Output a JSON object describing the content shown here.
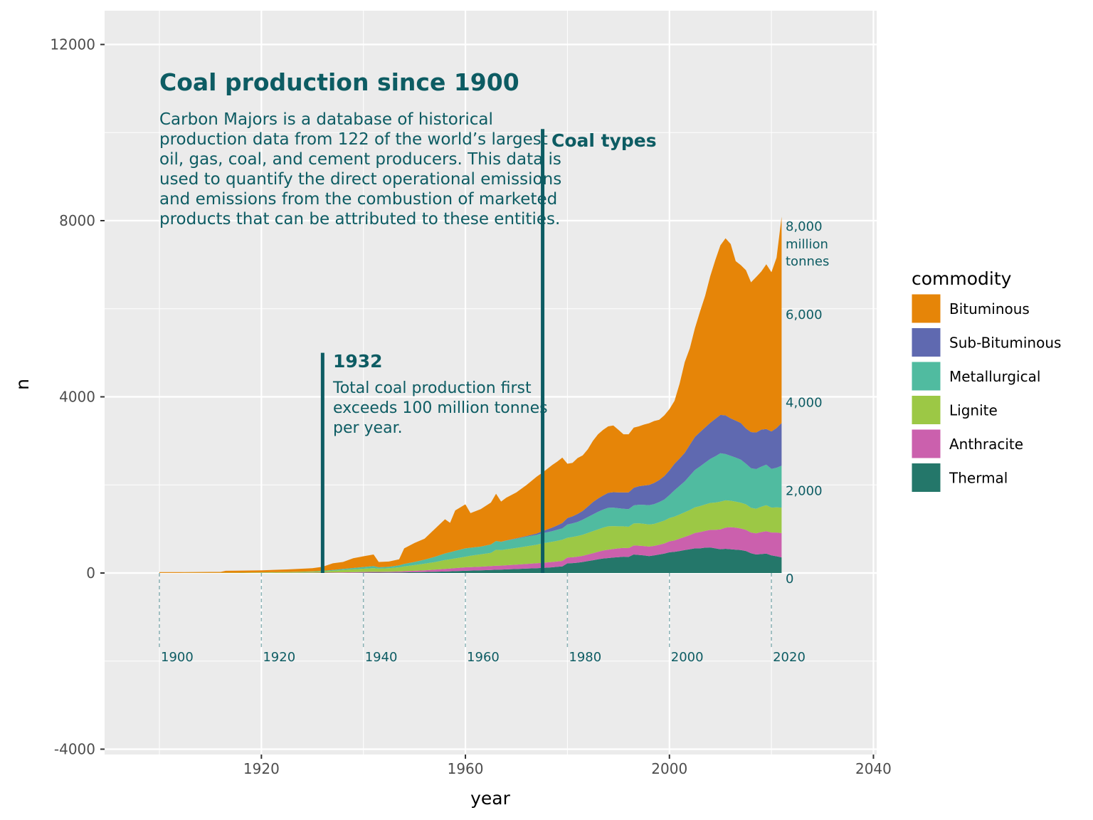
{
  "chart_data": {
    "type": "area",
    "stacked": true,
    "title": "Coal production since 1900",
    "subtitle": "Carbon Majors is a database of historical production data from 122 of the world’s largest oil, gas, coal, and cement producers. This data is used to quantify the direct operational emissions and emissions from the combustion of marketed products that can be attributed to these entities.",
    "subtitle_lines": [
      "Carbon Majors is a database of historical",
      "production data from 122 of the world’s largest",
      "oil, gas, coal, and cement producers. This data is",
      "used to quantify the direct operational emissions",
      "and emissions from the combustion of marketed",
      "products that can be attributed to these entities."
    ],
    "xlabel": "year",
    "ylabel": "n",
    "xlim": [
      1887,
      2041
    ],
    "ylim": [
      -4300,
      12800
    ],
    "x_ticks": [
      1920,
      1960,
      2000,
      2040
    ],
    "x_minor_ticks": [
      1900,
      1940,
      1980,
      2020
    ],
    "y_ticks": [
      -4000,
      0,
      4000,
      8000,
      12000
    ],
    "y_minor_ticks": [
      -2000,
      2000,
      6000,
      10000
    ],
    "grid": true,
    "legend": {
      "title": "commodity",
      "position": "right",
      "entries": [
        {
          "label": "Bituminous",
          "color": "#E68508"
        },
        {
          "label": "Sub-Bituminous",
          "color": "#5F69B0"
        },
        {
          "label": "Metallurgical",
          "color": "#50BBA0"
        },
        {
          "label": "Lignite",
          "color": "#9CC845"
        },
        {
          "label": "Anthracite",
          "color": "#CB60AD"
        },
        {
          "label": "Thermal",
          "color": "#24776A"
        }
      ]
    },
    "stack_order_bottom_to_top": [
      "Thermal",
      "Anthracite",
      "Lignite",
      "Metallurgical",
      "Sub-Bituminous",
      "Bituminous"
    ],
    "years": [
      1900,
      1905,
      1910,
      1912,
      1913,
      1915,
      1920,
      1925,
      1930,
      1932,
      1934,
      1936,
      1938,
      1940,
      1942,
      1943,
      1945,
      1947,
      1948,
      1950,
      1952,
      1954,
      1956,
      1957,
      1958,
      1960,
      1961,
      1963,
      1965,
      1966,
      1967,
      1968,
      1970,
      1972,
      1974,
      1975,
      1977,
      1978,
      1979,
      1980,
      1981,
      1982,
      1983,
      1984,
      1985,
      1986,
      1987,
      1988,
      1989,
      1990,
      1991,
      1992,
      1993,
      1994,
      1995,
      1996,
      1997,
      1998,
      1999,
      2000,
      2001,
      2002,
      2003,
      2004,
      2005,
      2006,
      2007,
      2008,
      2009,
      2010,
      2011,
      2012,
      2013,
      2014,
      2015,
      2016,
      2017,
      2018,
      2019,
      2020,
      2021,
      2022
    ],
    "series": [
      {
        "name": "Thermal",
        "values": [
          0,
          0,
          0,
          0,
          0,
          0,
          0,
          0,
          0,
          0,
          0,
          2,
          4,
          6,
          8,
          8,
          10,
          12,
          14,
          18,
          22,
          28,
          34,
          38,
          42,
          50,
          55,
          62,
          70,
          75,
          78,
          82,
          90,
          100,
          110,
          115,
          130,
          140,
          150,
          220,
          225,
          235,
          250,
          270,
          290,
          310,
          330,
          340,
          350,
          360,
          370,
          365,
          420,
          410,
          400,
          385,
          400,
          420,
          440,
          470,
          480,
          500,
          520,
          540,
          560,
          560,
          575,
          580,
          560,
          540,
          550,
          540,
          530,
          520,
          500,
          450,
          420,
          430,
          440,
          400,
          380,
          355
        ]
      },
      {
        "name": "Anthracite",
        "values": [
          0,
          0,
          0,
          0,
          0,
          0,
          2,
          4,
          6,
          8,
          10,
          12,
          14,
          16,
          18,
          16,
          18,
          22,
          26,
          32,
          40,
          50,
          60,
          64,
          70,
          80,
          78,
          82,
          88,
          92,
          90,
          94,
          100,
          106,
          112,
          115,
          120,
          122,
          124,
          130,
          132,
          136,
          140,
          150,
          160,
          170,
          180,
          190,
          195,
          200,
          200,
          200,
          205,
          210,
          212,
          215,
          215,
          220,
          230,
          250,
          260,
          280,
          300,
          320,
          350,
          370,
          380,
          400,
          420,
          450,
          480,
          500,
          500,
          490,
          480,
          470,
          480,
          500,
          510,
          520,
          540,
          550
        ]
      },
      {
        "name": "Lignite",
        "values": [
          2,
          3,
          4,
          4,
          6,
          7,
          10,
          15,
          22,
          28,
          40,
          55,
          65,
          75,
          85,
          75,
          80,
          95,
          110,
          130,
          150,
          170,
          200,
          210,
          220,
          240,
          260,
          280,
          300,
          360,
          350,
          360,
          380,
          400,
          420,
          440,
          460,
          470,
          480,
          450,
          460,
          470,
          480,
          490,
          500,
          510,
          520,
          530,
          520,
          500,
          490,
          485,
          500,
          510,
          505,
          500,
          500,
          510,
          520,
          530,
          540,
          550,
          560,
          570,
          580,
          590,
          600,
          610,
          620,
          630,
          620,
          600,
          590,
          585,
          580,
          560,
          560,
          575,
          590,
          565,
          570,
          580
        ]
      },
      {
        "name": "Metallurgical",
        "values": [
          0,
          0,
          0,
          0,
          0,
          0,
          2,
          4,
          8,
          12,
          18,
          25,
          30,
          38,
          45,
          30,
          35,
          45,
          55,
          70,
          90,
          120,
          150,
          160,
          170,
          190,
          180,
          175,
          190,
          200,
          190,
          200,
          210,
          220,
          225,
          230,
          240,
          250,
          260,
          300,
          310,
          320,
          340,
          360,
          380,
          400,
          410,
          420,
          420,
          410,
          400,
          400,
          410,
          420,
          430,
          440,
          450,
          460,
          480,
          520,
          600,
          650,
          700,
          780,
          850,
          900,
          950,
          1000,
          1050,
          1100,
          1050,
          1020,
          1000,
          980,
          920,
          900,
          900,
          910,
          920,
          880,
          900,
          950
        ]
      },
      {
        "name": "Sub-Bituminous",
        "values": [
          0,
          0,
          0,
          0,
          0,
          0,
          0,
          0,
          0,
          0,
          0,
          0,
          0,
          0,
          0,
          0,
          0,
          0,
          0,
          0,
          0,
          0,
          0,
          0,
          0,
          0,
          0,
          0,
          0,
          0,
          2,
          4,
          8,
          15,
          30,
          45,
          80,
          100,
          120,
          150,
          160,
          180,
          200,
          240,
          280,
          300,
          320,
          340,
          350,
          360,
          370,
          380,
          400,
          420,
          440,
          460,
          480,
          500,
          530,
          560,
          600,
          620,
          650,
          700,
          750,
          780,
          800,
          820,
          850,
          870,
          880,
          850,
          840,
          830,
          800,
          820,
          830,
          840,
          810,
          850,
          900,
          970
        ]
      },
      {
        "name": "Bituminous",
        "values": [
          18,
          18,
          20,
          20,
          44,
          44,
          48,
          58,
          74,
          92,
          152,
          156,
          221,
          245,
          264,
          121,
          117,
          136,
          355,
          430,
          478,
          632,
          776,
          668,
          918,
          1000,
          787,
          851,
          952,
          1073,
          912,
          970,
          1042,
          1159,
          1293,
          1325,
          1420,
          1448,
          1486,
          1230,
          1213,
          1269,
          1260,
          1300,
          1390,
          1460,
          1490,
          1510,
          1515,
          1420,
          1320,
          1320,
          1365,
          1360,
          1383,
          1400,
          1405,
          1370,
          1380,
          1390,
          1430,
          1700,
          2060,
          2190,
          2470,
          2740,
          2985,
          3330,
          3610,
          3850,
          4020,
          3960,
          3620,
          3585,
          3595,
          3400,
          3530,
          3590,
          3740,
          3615,
          3870,
          4685
        ]
      }
    ],
    "annotations": [
      {
        "title": "1932",
        "text_lines": [
          "Total coal production first",
          "exceeds 100 million tonnes",
          "per year."
        ],
        "x": 1932,
        "y_from": 0,
        "y_to": 5000
      },
      {
        "title": "Coal types",
        "x": 1975,
        "y_from": 0,
        "y_to": 10000
      }
    ],
    "inner_y_labels": [
      "0",
      "2,000",
      "4,000",
      "6,000",
      "8,000"
    ],
    "inner_y_label_values": [
      0,
      2000,
      4000,
      6000,
      8000
    ],
    "inner_y_unit_lines": [
      "million",
      "tonnes"
    ],
    "inner_x_labels": [
      "1900",
      "1920",
      "1940",
      "1960",
      "1980",
      "2000",
      "2020"
    ],
    "inner_x_label_values": [
      1900,
      1920,
      1940,
      1960,
      1980,
      2000,
      2020
    ],
    "colors": {
      "panel_bg": "#EBEBEB",
      "grid": "#FFFFFF",
      "annotation": "#0D5C63",
      "guide_dash": "#8AB2B5"
    }
  }
}
